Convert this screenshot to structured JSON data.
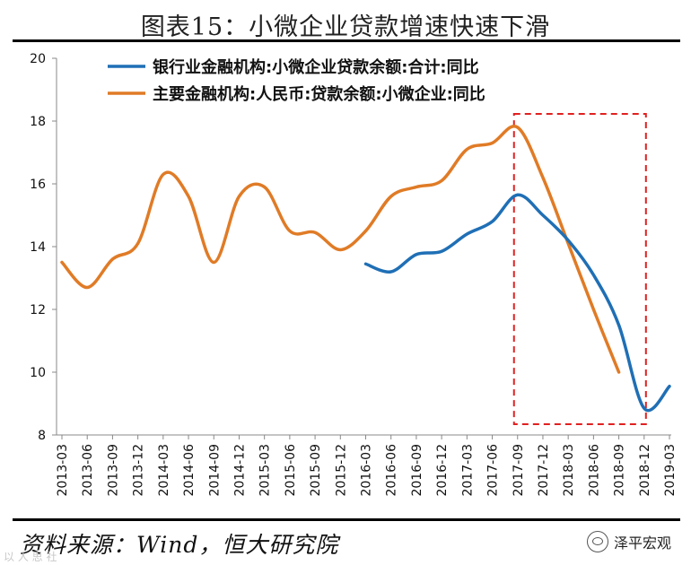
{
  "title": "图表15：小微企业贷款增速快速下滑",
  "source": "资料来源：Wind，恒大研究院",
  "brand": "泽平宏观",
  "watermark": "以 人 思 社",
  "chart_data": {
    "type": "line",
    "categories": [
      "2013-03",
      "2013-06",
      "2013-09",
      "2013-12",
      "2014-03",
      "2014-06",
      "2014-09",
      "2014-12",
      "2015-03",
      "2015-06",
      "2015-09",
      "2015-12",
      "2016-03",
      "2016-06",
      "2016-09",
      "2016-12",
      "2017-03",
      "2017-06",
      "2017-09",
      "2017-12",
      "2018-03",
      "2018-06",
      "2018-09",
      "2018-12",
      "2019-03"
    ],
    "ylim": [
      8,
      20
    ],
    "yticks": [
      8,
      10,
      12,
      14,
      16,
      18,
      20
    ],
    "legend_position": "top",
    "grid": false,
    "series": [
      {
        "name": "银行业金融机构:小微企业贷款余额:合计:同比",
        "color": "#1f6fb5",
        "values": [
          null,
          null,
          null,
          null,
          null,
          null,
          null,
          null,
          null,
          null,
          null,
          null,
          13.45,
          13.2,
          13.75,
          13.85,
          14.4,
          14.8,
          15.65,
          15.0,
          14.2,
          13.1,
          11.5,
          8.85,
          9.55
        ]
      },
      {
        "name": "主要金融机构:人民币:贷款余额:小微企业:同比",
        "color": "#e07b26",
        "values": [
          13.5,
          12.7,
          13.6,
          14.1,
          16.3,
          15.6,
          13.5,
          15.6,
          15.9,
          14.5,
          14.45,
          13.9,
          14.5,
          15.6,
          15.9,
          16.1,
          17.1,
          17.3,
          17.8,
          16.2,
          14.1,
          12.0,
          10.0,
          null,
          null
        ]
      }
    ],
    "highlight_box": {
      "from": "2017-09",
      "to": "2018-12",
      "color": "#e02020"
    }
  }
}
